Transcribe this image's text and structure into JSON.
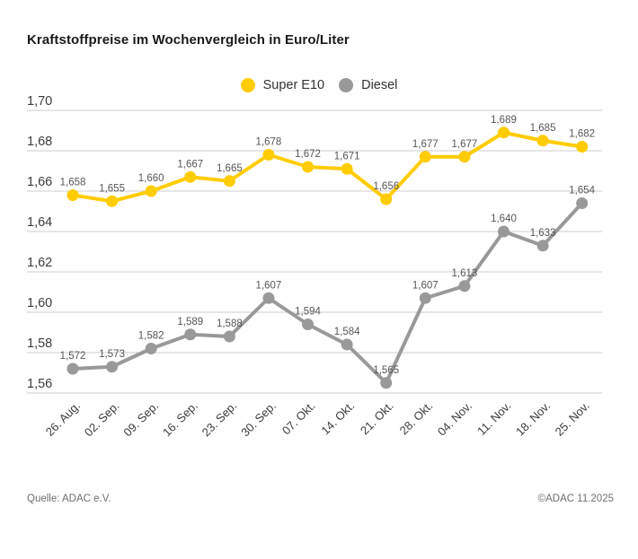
{
  "title": "Kraftstoffpreise im Wochenvergleich in Euro/Liter",
  "legend": [
    {
      "label": "Super E10",
      "color": "#FFCC00"
    },
    {
      "label": "Diesel",
      "color": "#999999"
    }
  ],
  "footer": {
    "source": "Quelle: ADAC e.V.",
    "copyright": "©ADAC 11.2025"
  },
  "chart_data": {
    "type": "line",
    "title": "Kraftstoffpreise im Wochenvergleich in Euro/Liter",
    "xlabel": "",
    "ylabel": "Euro/Liter",
    "ylim": [
      1.56,
      1.7
    ],
    "grid": true,
    "legend_position": "top-center",
    "yticks": [
      "1,70",
      "1,68",
      "1,66",
      "1,64",
      "1,62",
      "1,60",
      "1,58",
      "1,56"
    ],
    "categories": [
      "26. Aug.",
      "02. Sep.",
      "09. Sep.",
      "16. Sep.",
      "23. Sep.",
      "30. Sep.",
      "07. Okt.",
      "14. Okt.",
      "21. Okt.",
      "28. Okt.",
      "04. Nov.",
      "11. Nov.",
      "18. Nov.",
      "25. Nov."
    ],
    "series": [
      {
        "name": "Super E10",
        "color": "#FFCC00",
        "values": [
          1.658,
          1.655,
          1.66,
          1.667,
          1.665,
          1.678,
          1.672,
          1.671,
          1.656,
          1.677,
          1.677,
          1.689,
          1.685,
          1.682
        ]
      },
      {
        "name": "Diesel",
        "color": "#999999",
        "values": [
          1.572,
          1.573,
          1.582,
          1.589,
          1.588,
          1.607,
          1.594,
          1.584,
          1.565,
          1.607,
          1.613,
          1.64,
          1.633,
          1.654
        ]
      }
    ]
  }
}
